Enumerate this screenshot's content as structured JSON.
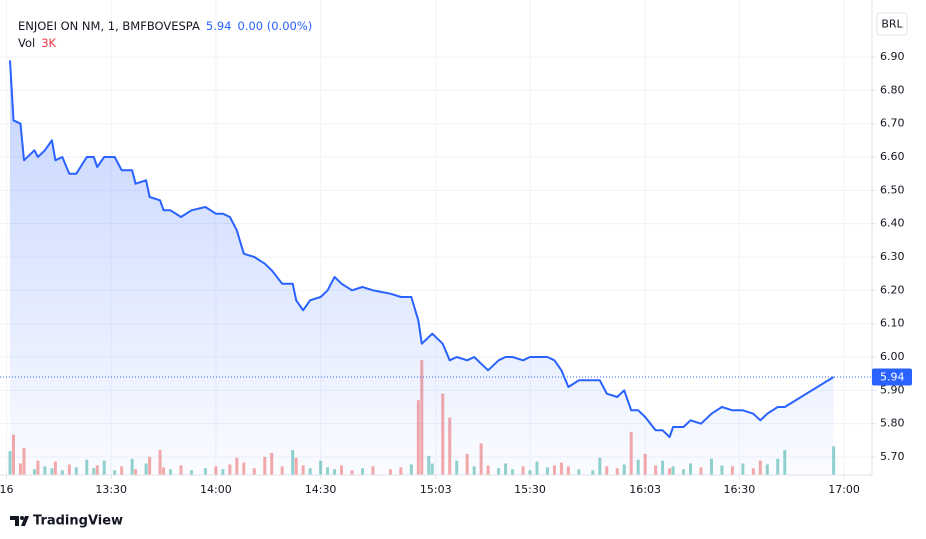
{
  "chart_data": {
    "type": "line",
    "title": "ENJOEI ON NM, 1, BMFBOVESPA",
    "last_change": "0.00 (0.00%)",
    "currency": "BRL",
    "color": "#2962ff",
    "x": [
      "13:01",
      "13:02",
      "13:04",
      "13:05",
      "13:08",
      "13:09",
      "13:11",
      "13:13",
      "13:14",
      "13:16",
      "13:18",
      "13:20",
      "13:23",
      "13:25",
      "13:26",
      "13:28",
      "13:31",
      "13:33",
      "13:36",
      "13:37",
      "13:40",
      "13:41",
      "13:44",
      "13:45",
      "13:47",
      "13:50",
      "13:53",
      "13:57",
      "14:00",
      "14:02",
      "14:04",
      "14:06",
      "14:08",
      "14:11",
      "14:14",
      "14:16",
      "14:19",
      "14:22",
      "14:23",
      "14:25",
      "14:27",
      "14:30",
      "14:32",
      "14:34",
      "14:36",
      "14:39",
      "14:42",
      "14:45",
      "14:50",
      "14:53",
      "14:56",
      "14:58",
      "14:59",
      "15:01",
      "15:02",
      "15:05",
      "15:07",
      "15:09",
      "15:12",
      "15:14",
      "15:16",
      "15:18",
      "15:21",
      "15:23",
      "15:25",
      "15:28",
      "15:30",
      "15:32",
      "15:35",
      "15:37",
      "15:39",
      "15:41",
      "15:44",
      "15:48",
      "15:50",
      "15:52",
      "15:55",
      "15:57",
      "15:59",
      "16:01",
      "16:03",
      "16:06",
      "16:08",
      "16:10",
      "16:11",
      "16:14",
      "16:16",
      "16:19",
      "16:22",
      "16:25",
      "16:28",
      "16:31",
      "16:34",
      "16:36",
      "16:38",
      "16:41",
      "16:43",
      "16:57"
    ],
    "values": [
      6.89,
      6.71,
      6.7,
      6.59,
      6.62,
      6.6,
      6.62,
      6.65,
      6.59,
      6.6,
      6.55,
      6.55,
      6.6,
      6.6,
      6.57,
      6.6,
      6.6,
      6.56,
      6.56,
      6.52,
      6.53,
      6.48,
      6.47,
      6.44,
      6.44,
      6.42,
      6.44,
      6.45,
      6.43,
      6.43,
      6.42,
      6.38,
      6.31,
      6.3,
      6.28,
      6.26,
      6.22,
      6.22,
      6.17,
      6.14,
      6.17,
      6.18,
      6.2,
      6.24,
      6.22,
      6.2,
      6.21,
      6.2,
      6.19,
      6.18,
      6.18,
      6.11,
      6.04,
      6.06,
      6.07,
      6.04,
      5.99,
      6.0,
      5.99,
      6.0,
      5.98,
      5.96,
      5.99,
      6.0,
      6.0,
      5.99,
      6.0,
      6.0,
      6.0,
      5.99,
      5.96,
      5.91,
      5.93,
      5.93,
      5.93,
      5.89,
      5.88,
      5.9,
      5.84,
      5.84,
      5.82,
      5.78,
      5.78,
      5.76,
      5.79,
      5.79,
      5.81,
      5.8,
      5.83,
      5.85,
      5.84,
      5.84,
      5.83,
      5.81,
      5.83,
      5.85,
      5.85,
      5.94
    ],
    "volume": {
      "name": "Vol",
      "last_label": "3K",
      "label_color": "#f23645",
      "up_color": "#26a69a",
      "down_color": "#ef5350",
      "values": [
        2500,
        4200,
        1200,
        2800,
        600,
        1500,
        900,
        700,
        1400,
        500,
        1100,
        800,
        1600,
        700,
        1000,
        1500,
        500,
        900,
        1700,
        600,
        1200,
        1900,
        2600,
        800,
        600,
        1000,
        500,
        700,
        900,
        600,
        1100,
        1800,
        1300,
        700,
        1900,
        2300,
        900,
        2600,
        1800,
        1000,
        700,
        1500,
        800,
        600,
        1000,
        500,
        700,
        900,
        600,
        800,
        1100,
        7800,
        12000,
        2000,
        1200,
        8500,
        6000,
        1500,
        2200,
        900,
        3300,
        1000,
        700,
        1200,
        600,
        900,
        500,
        1400,
        800,
        1000,
        1300,
        900,
        600,
        500,
        1800,
        900,
        700,
        1100,
        4500,
        1600,
        2200,
        1000,
        1500,
        700,
        900,
        600,
        1200,
        800,
        1700,
        1000,
        900,
        1200,
        700,
        1500,
        1100,
        1700,
        2600,
        3000
      ]
    },
    "xlim": [
      "13:01",
      "17:08"
    ],
    "xticks": [
      {
        "value": "13:00",
        "label": "16"
      },
      "13:30",
      "14:00",
      "14:30",
      "15:03",
      "15:30",
      "16:03",
      "16:30",
      "17:00"
    ],
    "ylim": [
      5.646,
      7.071
    ],
    "yticks": [
      {
        "value": 5.7,
        "label": "5.70"
      },
      {
        "value": 5.8,
        "label": "5.80"
      },
      {
        "value": 5.9,
        "label": "5.90"
      },
      {
        "value": 6.0,
        "label": "6.00"
      },
      {
        "value": 6.1,
        "label": "6.10"
      },
      {
        "value": 6.2,
        "label": "6.20"
      },
      {
        "value": 6.3,
        "label": "6.30"
      },
      {
        "value": 6.4,
        "label": "6.40"
      },
      {
        "value": 6.5,
        "label": "6.50"
      },
      {
        "value": 6.6,
        "label": "6.60"
      },
      {
        "value": 6.7,
        "label": "6.70"
      },
      {
        "value": 6.8,
        "label": "6.80"
      },
      {
        "value": 6.9,
        "label": "6.90"
      }
    ],
    "grid": true
  },
  "brand": "TradingView"
}
